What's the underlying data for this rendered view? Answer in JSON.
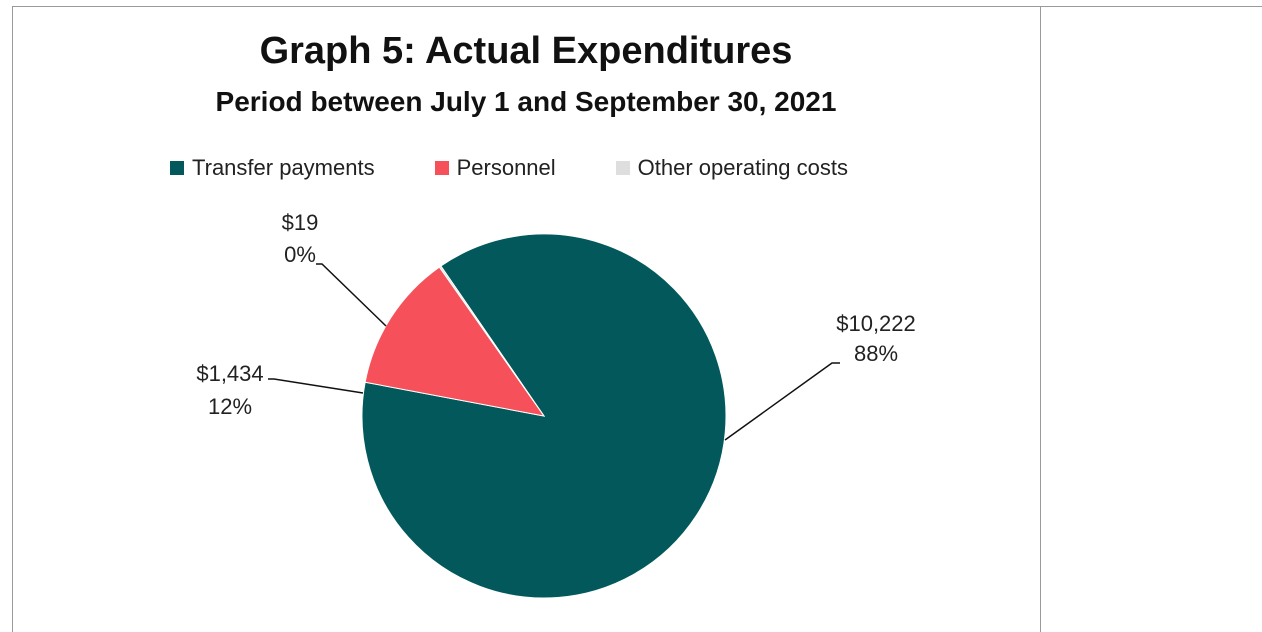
{
  "chart_data": {
    "type": "pie",
    "title": "Graph 5: Actual Expenditures",
    "subtitle": "Period between July 1 and September 30, 2021",
    "legend_position": "top",
    "slices": [
      {
        "name": "Transfer payments",
        "value": 10222,
        "value_label": "$10,222",
        "percent_label": "88%",
        "color": "#02585a"
      },
      {
        "name": "Personnel",
        "value": 1434,
        "value_label": "$1,434",
        "percent_label": "12%",
        "color": "#f6505a"
      },
      {
        "name": "Other operating costs",
        "value": 19,
        "value_label": "$19",
        "percent_label": "0%",
        "color": "#dedede"
      }
    ]
  }
}
